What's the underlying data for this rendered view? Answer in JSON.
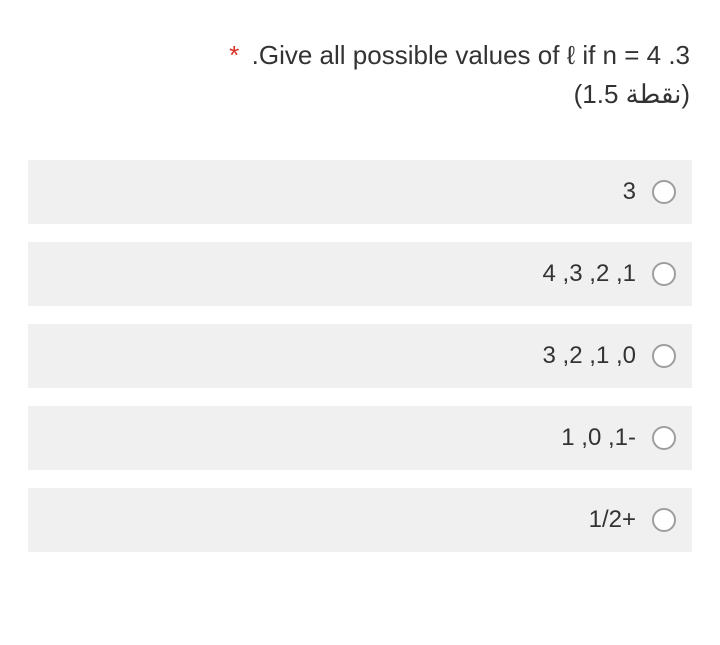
{
  "question": {
    "required_marker": "*",
    "text": ".Give all possible values of ℓ if n = 4 .3",
    "points": "(1.5 نقطة)"
  },
  "options": [
    {
      "label": "3"
    },
    {
      "label": "1, 2, 3, 4"
    },
    {
      "label": "0, 1, 2, 3"
    },
    {
      "label": "-1, 0, 1"
    },
    {
      "label": "+1/2"
    }
  ],
  "styling": {
    "background_color": "#ffffff",
    "option_bg_color": "#f0f0f0",
    "text_color": "#333333",
    "asterisk_color": "#d93025",
    "radio_border_color": "#9e9e9e",
    "question_fontsize": 26,
    "option_fontsize": 24
  }
}
